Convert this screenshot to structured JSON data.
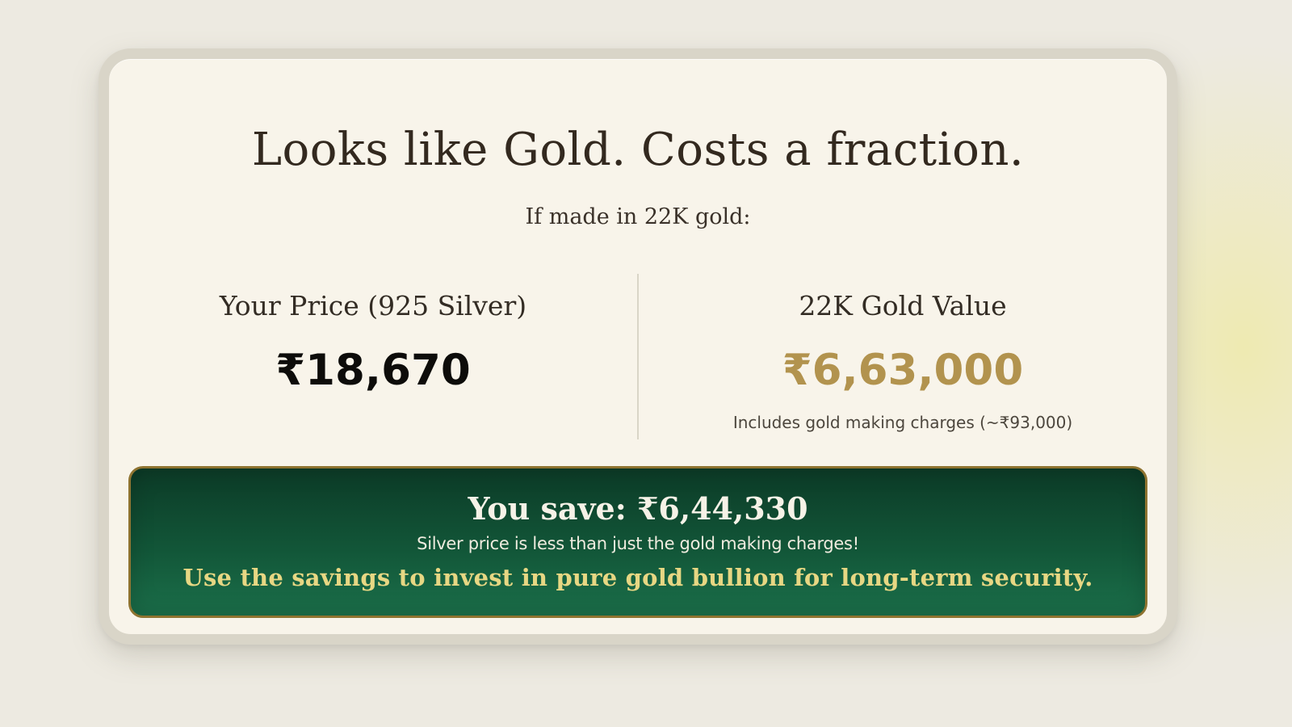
{
  "card": {
    "title": "Looks like Gold. Costs a fraction.",
    "subtitle": "If made in 22K gold:",
    "comparison": {
      "silver": {
        "label": "Your Price (925 Silver)",
        "price": "₹18,670"
      },
      "gold": {
        "label": "22K Gold Value",
        "price": "₹6,63,000",
        "note": "Includes gold making charges (~₹93,000)"
      }
    },
    "savings_banner": {
      "headline": "You save: ₹6,44,330",
      "subtext": "Silver price is less than just the gold making charges!",
      "cta_note": "Use the savings to invest in pure gold bullion for long-term security."
    }
  },
  "theme": {
    "page_background": "#edeae1",
    "page_glow": "#eeeaac",
    "card_background": "#f8f4ea",
    "card_border": "#d9d5c8",
    "gold_accent": "#b2934e",
    "banner_green_top": "#0c3b27",
    "banner_green_bottom": "#1b6f4a",
    "banner_border_gold": "#8e7330",
    "banner_gold_text": "#e7d783",
    "divider": "#d9d5c7"
  }
}
